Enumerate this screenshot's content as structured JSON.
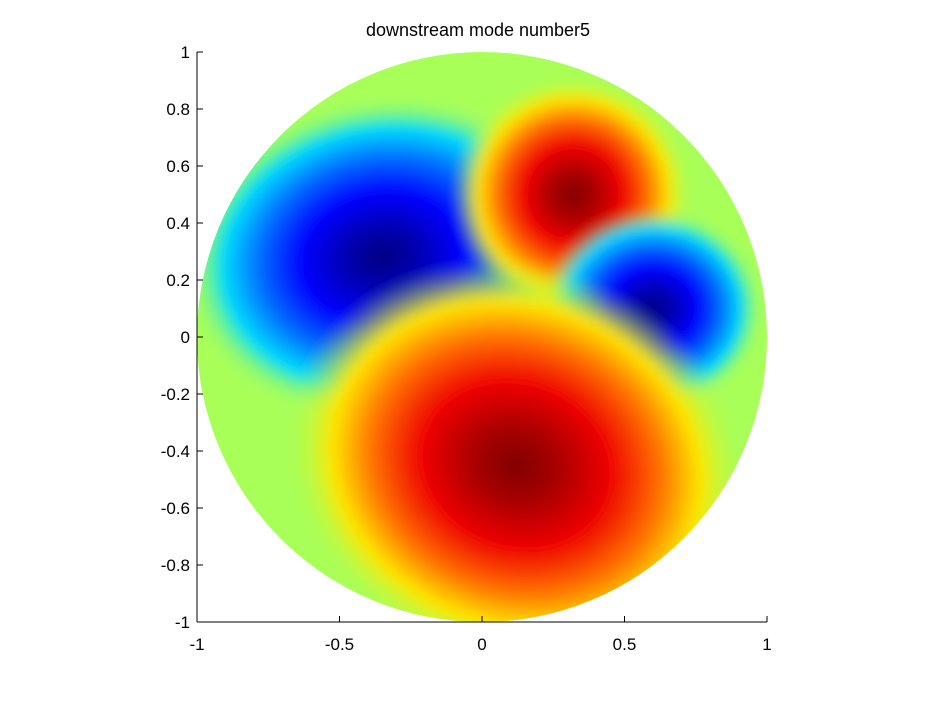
{
  "chart_data": {
    "type": "heatmap",
    "title": "downstream mode number5",
    "xlabel": "",
    "ylabel": "",
    "xlim": [
      -1,
      1
    ],
    "ylim": [
      -1,
      1
    ],
    "x_ticks": [
      "-1",
      "-0.5",
      "0",
      "0.5",
      "1"
    ],
    "y_ticks": [
      "1",
      "0.8",
      "0.6",
      "0.4",
      "0.2",
      "0",
      "-0.2",
      "-0.4",
      "-0.6",
      "-0.8",
      "-1"
    ],
    "domain": "unit disk",
    "colormap": "jet",
    "grid": false,
    "colorbar": false,
    "background_color": "#a8ff58",
    "extrema": [
      {
        "kind": "min",
        "x": -0.35,
        "y": 0.28,
        "value": -1.0,
        "color": "#000080"
      },
      {
        "kind": "max",
        "x": 0.32,
        "y": 0.5,
        "value": 1.0,
        "color": "#800000"
      },
      {
        "kind": "min",
        "x": 0.6,
        "y": 0.1,
        "value": -0.95,
        "color": "#000090"
      },
      {
        "kind": "max",
        "x": 0.12,
        "y": -0.45,
        "value": 1.0,
        "color": "#800000"
      }
    ]
  }
}
